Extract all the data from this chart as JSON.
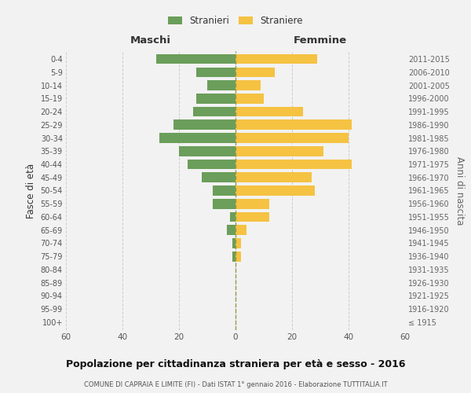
{
  "age_groups": [
    "100+",
    "95-99",
    "90-94",
    "85-89",
    "80-84",
    "75-79",
    "70-74",
    "65-69",
    "60-64",
    "55-59",
    "50-54",
    "45-49",
    "40-44",
    "35-39",
    "30-34",
    "25-29",
    "20-24",
    "15-19",
    "10-14",
    "5-9",
    "0-4"
  ],
  "birth_years": [
    "≤ 1915",
    "1916-1920",
    "1921-1925",
    "1926-1930",
    "1931-1935",
    "1936-1940",
    "1941-1945",
    "1946-1950",
    "1951-1955",
    "1956-1960",
    "1961-1965",
    "1966-1970",
    "1971-1975",
    "1976-1980",
    "1981-1985",
    "1986-1990",
    "1991-1995",
    "1996-2000",
    "2001-2005",
    "2006-2010",
    "2011-2015"
  ],
  "males": [
    0,
    0,
    0,
    0,
    0,
    1,
    1,
    3,
    2,
    8,
    8,
    12,
    17,
    20,
    27,
    22,
    15,
    14,
    10,
    14,
    28
  ],
  "females": [
    0,
    0,
    0,
    0,
    0,
    2,
    2,
    4,
    12,
    12,
    28,
    27,
    41,
    31,
    40,
    41,
    24,
    10,
    9,
    14,
    29
  ],
  "male_color": "#6a9e5a",
  "female_color": "#f5c242",
  "background_color": "#f2f2f2",
  "grid_color": "#cccccc",
  "title": "Popolazione per cittadinanza straniera per età e sesso - 2016",
  "subtitle": "COMUNE DI CAPRAIA E LIMITE (FI) - Dati ISTAT 1° gennaio 2016 - Elaborazione TUTTITALIA.IT",
  "left_label": "Maschi",
  "right_label": "Femmine",
  "y_left_label": "Fasce di età",
  "y_right_label": "Anni di nascita",
  "legend_male": "Stranieri",
  "legend_female": "Straniere",
  "xlim": 60,
  "bar_height": 0.75
}
